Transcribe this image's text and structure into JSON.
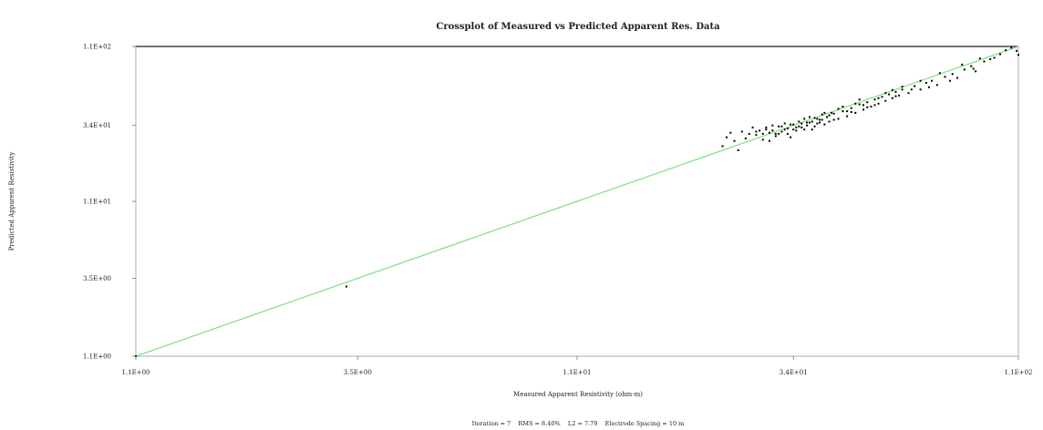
{
  "chart_data": {
    "type": "scatter",
    "title": "Crossplot of Measured vs Predicted Apparent Res. Data",
    "xlabel": "Measured Apparent Resistivity (ohm-m)",
    "ylabel": "Predicted Apparent Resistivity",
    "x_scale": "log",
    "y_scale": "log",
    "xlim": [
      1.1,
      110
    ],
    "ylim": [
      1.1,
      110
    ],
    "x_ticks": [
      {
        "value": 1.1,
        "label": "1.1E+00"
      },
      {
        "value": 3.5,
        "label": "3.5E+00"
      },
      {
        "value": 11,
        "label": "1.1E+01"
      },
      {
        "value": 34,
        "label": "3.4E+01"
      },
      {
        "value": 110,
        "label": "1.1E+02"
      }
    ],
    "y_ticks": [
      {
        "value": 1.1,
        "label": "1.1E+00"
      },
      {
        "value": 3.5,
        "label": "3.5E+00"
      },
      {
        "value": 11,
        "label": "1.1E+01"
      },
      {
        "value": 34,
        "label": "3.4E+01"
      },
      {
        "value": 110,
        "label": "1.1E+02"
      }
    ],
    "grid": false,
    "reference_line": {
      "from": [
        1.1,
        1.1
      ],
      "to": [
        110,
        110
      ],
      "color": "#7fe07f"
    },
    "point_color": "#000000",
    "footer": "Iteration = 7    RMS = 8.40%    L2 = 7.79    Electrode Spacing = 10 m",
    "points": [
      [
        1.1,
        1.1
      ],
      [
        3.3,
        3.1
      ],
      [
        23.5,
        25.0
      ],
      [
        24.0,
        28.5
      ],
      [
        24.5,
        30.5
      ],
      [
        25.0,
        27.0
      ],
      [
        25.5,
        23.5
      ],
      [
        26.0,
        31.0
      ],
      [
        26.5,
        28.0
      ],
      [
        27.0,
        30.0
      ],
      [
        27.5,
        33.0
      ],
      [
        28.0,
        29.5
      ],
      [
        28.5,
        31.5
      ],
      [
        29.0,
        27.5
      ],
      [
        29.5,
        32.0
      ],
      [
        30.0,
        30.5
      ],
      [
        30.5,
        34.0
      ],
      [
        31.0,
        29.0
      ],
      [
        31.5,
        33.5
      ],
      [
        32.0,
        31.0
      ],
      [
        32.5,
        35.0
      ],
      [
        33.0,
        32.5
      ],
      [
        33.5,
        28.5
      ],
      [
        34.0,
        34.5
      ],
      [
        34.5,
        31.5
      ],
      [
        35.0,
        36.0
      ],
      [
        35.5,
        33.0
      ],
      [
        36.0,
        37.5
      ],
      [
        36.5,
        34.0
      ],
      [
        37.0,
        35.5
      ],
      [
        37.5,
        32.0
      ],
      [
        38.0,
        38.0
      ],
      [
        38.5,
        35.0
      ],
      [
        39.0,
        37.0
      ],
      [
        39.5,
        40.0
      ],
      [
        40.0,
        34.5
      ],
      [
        40.5,
        38.5
      ],
      [
        41.0,
        36.0
      ],
      [
        42.0,
        40.5
      ],
      [
        43.0,
        37.5
      ],
      [
        44.0,
        42.0
      ],
      [
        45.0,
        39.0
      ],
      [
        46.0,
        44.0
      ],
      [
        47.0,
        41.0
      ],
      [
        48.0,
        46.5
      ],
      [
        49.0,
        43.0
      ],
      [
        50.0,
        48.0
      ],
      [
        51.0,
        45.0
      ],
      [
        52.0,
        50.0
      ],
      [
        53.0,
        47.0
      ],
      [
        54.0,
        52.0
      ],
      [
        55.0,
        49.0
      ],
      [
        56.0,
        54.0
      ],
      [
        57.0,
        51.0
      ],
      [
        58.0,
        56.0
      ],
      [
        59.0,
        53.0
      ],
      [
        60.0,
        58.0
      ],
      [
        62.0,
        55.0
      ],
      [
        64.0,
        61.0
      ],
      [
        66.0,
        58.0
      ],
      [
        68.0,
        64.0
      ],
      [
        70.0,
        66.0
      ],
      [
        72.0,
        62.0
      ],
      [
        75.0,
        70.0
      ],
      [
        78.0,
        73.0
      ],
      [
        80.0,
        69.0
      ],
      [
        83.0,
        78.0
      ],
      [
        86.0,
        82.0
      ],
      [
        88.0,
        76.0
      ],
      [
        92.0,
        88.0
      ],
      [
        95.0,
        91.0
      ],
      [
        100.0,
        98.0
      ],
      [
        103.0,
        104.0
      ],
      [
        106.0,
        108.0
      ],
      [
        109.0,
        103.0
      ],
      [
        110.0,
        97.0
      ],
      [
        30.0,
        27.0
      ],
      [
        31.0,
        30.0
      ],
      [
        32.0,
        33.5
      ],
      [
        33.0,
        30.0
      ],
      [
        34.0,
        32.0
      ],
      [
        35.0,
        33.5
      ],
      [
        36.0,
        32.0
      ],
      [
        37.0,
        38.5
      ],
      [
        38.0,
        33.5
      ],
      [
        39.0,
        35.5
      ],
      [
        40.0,
        41.0
      ],
      [
        41.0,
        39.5
      ],
      [
        42.0,
        37.0
      ],
      [
        44.0,
        45.0
      ],
      [
        46.0,
        41.5
      ],
      [
        48.0,
        50.0
      ],
      [
        50.0,
        44.5
      ],
      [
        52.0,
        46.0
      ],
      [
        55.0,
        55.0
      ],
      [
        58.0,
        52.5
      ],
      [
        60.0,
        60.5
      ],
      [
        63.0,
        58.0
      ],
      [
        66.0,
        66.0
      ],
      [
        69.0,
        60.0
      ],
      [
        73.0,
        74.0
      ],
      [
        77.0,
        66.0
      ],
      [
        82.0,
        84.0
      ],
      [
        87.0,
        79.0
      ],
      [
        90.0,
        92.0
      ],
      [
        97.0,
        93.0
      ],
      [
        28.0,
        31.0
      ],
      [
        29.0,
        30.0
      ],
      [
        29.5,
        33.0
      ],
      [
        30.5,
        31.5
      ],
      [
        31.5,
        30.0
      ],
      [
        32.5,
        32.0
      ],
      [
        33.5,
        34.5
      ],
      [
        34.5,
        33.0
      ],
      [
        35.5,
        35.0
      ],
      [
        36.5,
        35.5
      ],
      [
        37.5,
        36.0
      ],
      [
        38.5,
        37.5
      ],
      [
        39.5,
        37.0
      ],
      [
        41.5,
        41.0
      ],
      [
        43.0,
        43.5
      ],
      [
        45.0,
        42.0
      ],
      [
        47.0,
        47.0
      ],
      [
        49.0,
        46.0
      ],
      [
        53.0,
        51.0
      ],
      [
        57.0,
        57.5
      ]
    ]
  }
}
